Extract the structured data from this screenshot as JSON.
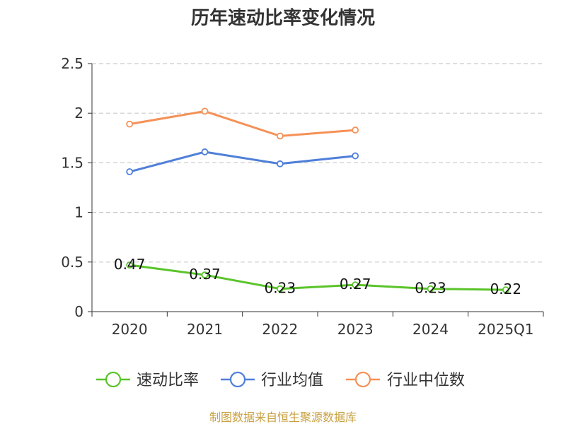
{
  "chart_data": {
    "type": "line",
    "title": "历年速动比率变化情况",
    "categories": [
      "2020",
      "2021",
      "2022",
      "2023",
      "2024",
      "2025Q1"
    ],
    "ylim": [
      0,
      2.5
    ],
    "yticks": [
      "0",
      "0.5",
      "1",
      "1.5",
      "2",
      "2.5"
    ],
    "grid": true,
    "legend_position": "bottom",
    "series": [
      {
        "name": "速动比率",
        "color": "#5ac42a",
        "values": [
          0.47,
          0.37,
          0.23,
          0.27,
          0.23,
          0.22
        ],
        "labels": [
          "0.47",
          "0.37",
          "0.23",
          "0.27",
          "0.23",
          "0.22"
        ]
      },
      {
        "name": "行业均值",
        "color": "#4f7fd9",
        "values": [
          1.41,
          1.61,
          1.49,
          1.57,
          null,
          null
        ]
      },
      {
        "name": "行业中位数",
        "color": "#f59158",
        "values": [
          1.89,
          2.02,
          1.77,
          1.83,
          null,
          null
        ]
      }
    ]
  },
  "source": "制图数据来自恒生聚源数据库"
}
